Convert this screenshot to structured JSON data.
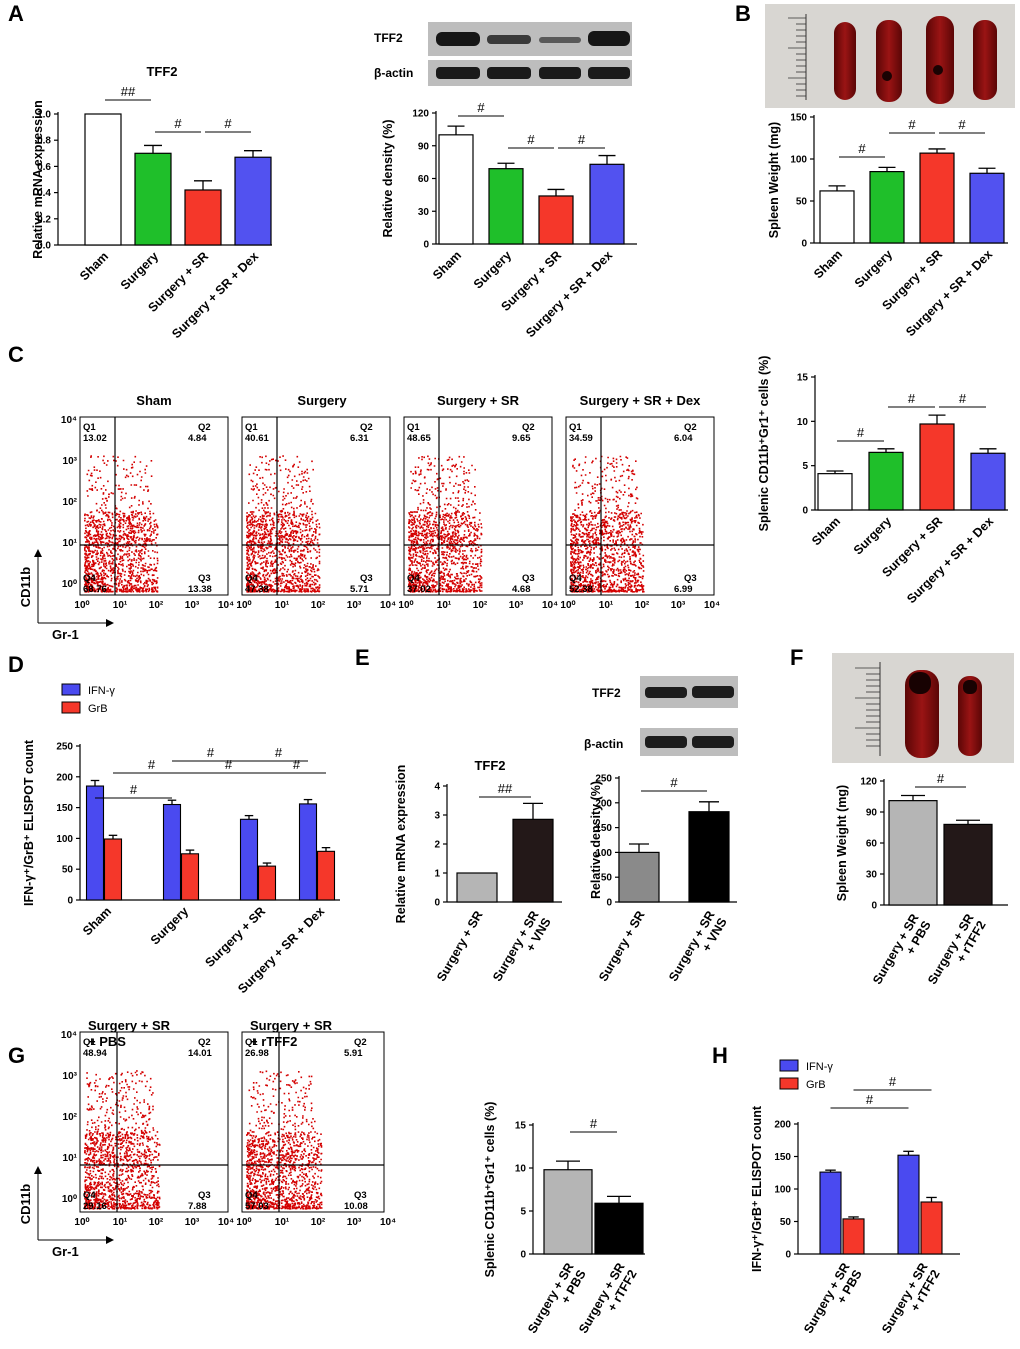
{
  "figure": {
    "panel_labels": [
      "A",
      "B",
      "C",
      "D",
      "E",
      "F",
      "G",
      "H"
    ],
    "colors": {
      "sham": "#ffffff",
      "surgery": "#1fbf2a",
      "sr": "#f5372a",
      "dex": "#5252f0",
      "grey_light": "#b5b5b5",
      "grey_mid": "#8a8a8a",
      "dark": "#231818",
      "black": "#000000",
      "ifn": "#4a4af0",
      "grb": "#f5372a",
      "flow_dots": "#d40000",
      "blot_band": "#1a1a1a",
      "blot_bg": "#bdbdbd",
      "photo_bg": "#d8d6d2",
      "spleen": "#7a0c0c"
    },
    "blot_labels": {
      "tff2": "TFF2",
      "actin": "β-actin"
    }
  },
  "chart_data": [
    {
      "id": "A1",
      "panel": "A",
      "type": "bar",
      "title": "TFF2",
      "ylabel": "Relative mRNA expression",
      "xlabel": "",
      "categories": [
        "Sham",
        "Surgery",
        "Surgery + SR",
        "Surgery + SR + Dex"
      ],
      "values": [
        1.0,
        0.7,
        0.42,
        0.67
      ],
      "errors": [
        0,
        0.06,
        0.07,
        0.05
      ],
      "ylim": [
        0,
        1.0
      ],
      "yticks": [
        "0.0",
        "0.2",
        "0.4",
        "0.6",
        "0.8",
        "1.0"
      ],
      "ytick_values": [
        0,
        0.2,
        0.4,
        0.6,
        0.8,
        1.0
      ],
      "significance": [
        {
          "from": 0,
          "to": 1,
          "label": "##"
        },
        {
          "from": 1,
          "to": 2,
          "label": "#"
        },
        {
          "from": 2,
          "to": 3,
          "label": "#"
        }
      ]
    },
    {
      "id": "A2",
      "panel": "A",
      "type": "bar",
      "title": "",
      "ylabel": "Relative density (%)",
      "xlabel": "",
      "categories": [
        "Sham",
        "Surgery",
        "Surgery + SR",
        "Surgery + SR + Dex"
      ],
      "values": [
        100,
        69,
        44,
        73
      ],
      "errors": [
        8,
        5,
        6,
        8
      ],
      "ylim": [
        0,
        120
      ],
      "yticks": [
        "0",
        "30",
        "60",
        "90",
        "120"
      ],
      "ytick_values": [
        0,
        30,
        60,
        90,
        120
      ],
      "significance": [
        {
          "from": 0,
          "to": 1,
          "label": "#"
        },
        {
          "from": 1,
          "to": 2,
          "label": "#"
        },
        {
          "from": 2,
          "to": 3,
          "label": "#"
        }
      ]
    },
    {
      "id": "B",
      "panel": "B",
      "type": "bar",
      "title": "",
      "ylabel": "Spleen Weight (mg)",
      "xlabel": "",
      "categories": [
        "Sham",
        "Surgery",
        "Surgery + SR",
        "Surgery + SR + Dex"
      ],
      "values": [
        62,
        85,
        107,
        83
      ],
      "errors": [
        6,
        5,
        5,
        6
      ],
      "ylim": [
        0,
        150
      ],
      "yticks": [
        "0",
        "50",
        "100",
        "150"
      ],
      "ytick_values": [
        0,
        50,
        100,
        150
      ],
      "significance": [
        {
          "from": 0,
          "to": 1,
          "label": "#"
        },
        {
          "from": 1,
          "to": 2,
          "label": "#"
        },
        {
          "from": 2,
          "to": 3,
          "label": "#"
        }
      ]
    },
    {
      "id": "C",
      "panel": "C",
      "type": "bar",
      "title": "",
      "ylabel": "Splenic CD11b⁺Gr1⁺ cells (%)",
      "xlabel": "",
      "categories": [
        "Sham",
        "Surgery",
        "Surgery + SR",
        "Surgery + SR + Dex"
      ],
      "values": [
        4.1,
        6.5,
        9.7,
        6.4
      ],
      "errors": [
        0.3,
        0.4,
        1.0,
        0.5
      ],
      "ylim": [
        0,
        15
      ],
      "yticks": [
        "0",
        "5",
        "10",
        "15"
      ],
      "ytick_values": [
        0,
        5,
        10,
        15
      ],
      "significance": [
        {
          "from": 0,
          "to": 1,
          "label": "#"
        },
        {
          "from": 1,
          "to": 2,
          "label": "#"
        },
        {
          "from": 2,
          "to": 3,
          "label": "#"
        }
      ]
    },
    {
      "id": "D",
      "panel": "D",
      "type": "bar",
      "title": "",
      "ylabel": "IFN-γ⁺/GrB⁺ ELISPOT count",
      "xlabel": "",
      "categories": [
        "Sham",
        "Surgery",
        "Surgery + SR",
        "Surgery + SR + Dex"
      ],
      "series": [
        {
          "name": "IFN-γ",
          "values": [
            185,
            155,
            131,
            156
          ],
          "errors": [
            9,
            7,
            6,
            7
          ]
        },
        {
          "name": "GrB",
          "values": [
            99,
            75,
            55,
            79
          ],
          "errors": [
            6,
            6,
            5,
            6
          ]
        }
      ],
      "ylim": [
        0,
        250
      ],
      "yticks": [
        "0",
        "50",
        "100",
        "150",
        "200",
        "250"
      ],
      "ytick_values": [
        0,
        50,
        100,
        150,
        200,
        250
      ],
      "significance": [
        {
          "from": 0,
          "to": 1,
          "label": "#",
          "row": 2,
          "series": 0
        },
        {
          "from": 1,
          "to": 2,
          "label": "#",
          "row": 0,
          "series": 0
        },
        {
          "from": 2,
          "to": 3,
          "label": "#",
          "row": 0,
          "series": 0
        },
        {
          "from": 0,
          "to": 1,
          "label": "#",
          "row": 1,
          "series": 1
        },
        {
          "from": 1,
          "to": 2,
          "label": "#",
          "row": 1,
          "series": 1
        },
        {
          "from": 2,
          "to": 3,
          "label": "#",
          "row": 1,
          "series": 1
        }
      ]
    },
    {
      "id": "E1",
      "panel": "E",
      "type": "bar",
      "title": "TFF2",
      "ylabel": "Relative mRNA expression",
      "xlabel": "",
      "categories": [
        "Surgery + SR",
        "Surgery + SR + VNS"
      ],
      "values": [
        1.0,
        2.85
      ],
      "errors": [
        0,
        0.55
      ],
      "ylim": [
        0,
        4
      ],
      "yticks": [
        "0",
        "1",
        "2",
        "3",
        "4"
      ],
      "ytick_values": [
        0,
        1,
        2,
        3,
        4
      ],
      "significance": [
        {
          "from": 0,
          "to": 1,
          "label": "##"
        }
      ]
    },
    {
      "id": "E2",
      "panel": "E",
      "type": "bar",
      "title": "",
      "ylabel": "Relative density (%)",
      "xlabel": "",
      "categories": [
        "Surgery + SR",
        "Surgery + SR + VNS"
      ],
      "values": [
        100,
        182
      ],
      "errors": [
        17,
        20
      ],
      "ylim": [
        0,
        250
      ],
      "yticks": [
        "0",
        "50",
        "100",
        "150",
        "200",
        "250"
      ],
      "ytick_values": [
        0,
        50,
        100,
        150,
        200,
        250
      ],
      "significance": [
        {
          "from": 0,
          "to": 1,
          "label": "#"
        }
      ]
    },
    {
      "id": "F",
      "panel": "F",
      "type": "bar",
      "title": "",
      "ylabel": "Spleen Weight (mg)",
      "xlabel": "",
      "categories": [
        "Surgery + SR + PBS",
        "Surgery + SR + rTFF2"
      ],
      "values": [
        101,
        78
      ],
      "errors": [
        5,
        4
      ],
      "ylim": [
        0,
        120
      ],
      "yticks": [
        "0",
        "30",
        "60",
        "90",
        "120"
      ],
      "ytick_values": [
        0,
        30,
        60,
        90,
        120
      ],
      "significance": [
        {
          "from": 0,
          "to": 1,
          "label": "#"
        }
      ]
    },
    {
      "id": "G",
      "panel": "G",
      "type": "bar",
      "title": "",
      "ylabel": "Splenic CD11b⁺Gr1⁺ cells (%)",
      "xlabel": "",
      "categories": [
        "Surgery + SR + PBS",
        "Surgery + SR + rTFF2"
      ],
      "values": [
        9.8,
        5.9
      ],
      "errors": [
        1.0,
        0.8
      ],
      "ylim": [
        0,
        15
      ],
      "yticks": [
        "0",
        "5",
        "10",
        "15"
      ],
      "ytick_values": [
        0,
        5,
        10,
        15
      ],
      "significance": [
        {
          "from": 0,
          "to": 1,
          "label": "#"
        }
      ]
    },
    {
      "id": "H",
      "panel": "H",
      "type": "bar",
      "title": "",
      "ylabel": "IFN-γ⁺/GrB⁺ ELISPOT count",
      "xlabel": "",
      "categories": [
        "Surgery + SR + PBS",
        "Surgery + SR + rTFF2"
      ],
      "series": [
        {
          "name": "IFN-γ",
          "values": [
            126,
            152
          ],
          "errors": [
            3,
            6
          ]
        },
        {
          "name": "GrB",
          "values": [
            54,
            80
          ],
          "errors": [
            3,
            7
          ]
        }
      ],
      "ylim": [
        0,
        200
      ],
      "yticks": [
        "0",
        "50",
        "100",
        "150",
        "200"
      ],
      "ytick_values": [
        0,
        50,
        100,
        150,
        200
      ],
      "significance": [
        {
          "from": 0,
          "to": 1,
          "label": "#",
          "row": 0,
          "series": 0
        },
        {
          "from": 0,
          "to": 1,
          "label": "#",
          "row": 1,
          "series": 1
        }
      ]
    }
  ],
  "flow": {
    "x_axis_label": "Gr-1",
    "y_axis_label": "CD11b",
    "x_ticks": [
      "10⁰",
      "10¹",
      "10²",
      "10³",
      "10⁴"
    ],
    "y_ticks": [
      "10⁴",
      "10³",
      "10²",
      "10¹",
      "10⁰"
    ],
    "plots": [
      {
        "id": "C-sham",
        "title": "Sham",
        "q1": "13.02",
        "q2": "4.84",
        "q3": "13.38",
        "q4": "68.76"
      },
      {
        "id": "C-surgery",
        "title": "Surgery",
        "q1": "40.61",
        "q2": "6.31",
        "q3": "5.71",
        "q4": "47.38"
      },
      {
        "id": "C-sr",
        "title": "Surgery + SR",
        "q1": "48.65",
        "q2": "9.65",
        "q3": "4.68",
        "q4": "37.02"
      },
      {
        "id": "C-dex",
        "title": "Surgery + SR + Dex",
        "q1": "34.59",
        "q2": "6.04",
        "q3": "6.99",
        "q4": "52.38"
      },
      {
        "id": "G-pbs",
        "title": "Surgery + SR\n+ PBS",
        "q1": "48.94",
        "q2": "14.01",
        "q3": "7.88",
        "q4": "29.16"
      },
      {
        "id": "G-rtff2",
        "title": "Surgery + SR\n+ rTFF2",
        "q1": "26.98",
        "q2": "5.91",
        "q3": "10.08",
        "q4": "57.03"
      }
    ]
  }
}
